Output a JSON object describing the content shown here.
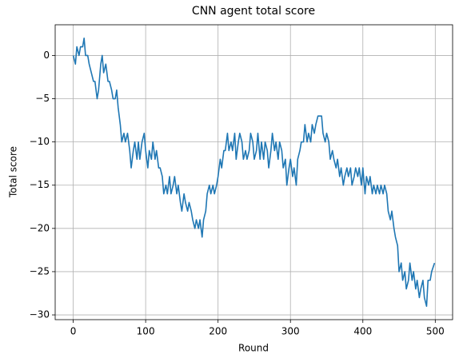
{
  "chart_data": {
    "type": "line",
    "title": "CNN agent total score",
    "xlabel": "Round",
    "ylabel": "Total score",
    "x": [
      0,
      3,
      5,
      8,
      10,
      13,
      15,
      17,
      20,
      22,
      25,
      28,
      30,
      33,
      35,
      38,
      40,
      42,
      45,
      48,
      50,
      53,
      55,
      58,
      60,
      62,
      65,
      67,
      70,
      72,
      75,
      78,
      80,
      83,
      85,
      88,
      90,
      92,
      95,
      98,
      100,
      103,
      105,
      108,
      110,
      113,
      115,
      118,
      120,
      123,
      125,
      128,
      130,
      133,
      135,
      138,
      140,
      143,
      145,
      148,
      150,
      153,
      155,
      158,
      160,
      163,
      165,
      168,
      170,
      173,
      175,
      178,
      180,
      183,
      185,
      188,
      190,
      193,
      195,
      198,
      200,
      203,
      205,
      208,
      210,
      213,
      215,
      218,
      220,
      223,
      225,
      228,
      230,
      233,
      235,
      238,
      240,
      243,
      245,
      248,
      250,
      253,
      255,
      258,
      260,
      263,
      265,
      268,
      270,
      273,
      275,
      278,
      280,
      283,
      285,
      288,
      290,
      293,
      295,
      298,
      300,
      303,
      305,
      308,
      310,
      313,
      315,
      318,
      320,
      323,
      325,
      328,
      330,
      333,
      335,
      338,
      340,
      343,
      345,
      348,
      350,
      353,
      355,
      358,
      360,
      363,
      365,
      368,
      370,
      373,
      375,
      378,
      380,
      383,
      385,
      388,
      390,
      393,
      395,
      398,
      400,
      403,
      405,
      408,
      410,
      413,
      415,
      418,
      420,
      423,
      425,
      428,
      430,
      433,
      435,
      438,
      440,
      443,
      445,
      448,
      450,
      453,
      455,
      458,
      460,
      463,
      465,
      468,
      470,
      473,
      475,
      478,
      480,
      483,
      485,
      488,
      490,
      493,
      495,
      499
    ],
    "series": [
      {
        "name": "Total score",
        "color": "#1f77b4",
        "values": [
          0,
          -1,
          1,
          0,
          1,
          1,
          2,
          0,
          0,
          -1,
          -2,
          -3,
          -3,
          -5,
          -4,
          -1,
          0,
          -2,
          -1,
          -3,
          -3,
          -4,
          -5,
          -5,
          -4,
          -6,
          -8,
          -10,
          -9,
          -10,
          -9,
          -11,
          -13,
          -11,
          -10,
          -12,
          -10,
          -12,
          -10,
          -9,
          -11,
          -13,
          -11,
          -12,
          -10,
          -12,
          -11,
          -13,
          -13,
          -14,
          -16,
          -15,
          -16,
          -14,
          -16,
          -15,
          -14,
          -16,
          -15,
          -17,
          -18,
          -16,
          -17,
          -18,
          -17,
          -18,
          -19,
          -20,
          -19,
          -20,
          -19,
          -21,
          -19,
          -18,
          -16,
          -15,
          -16,
          -15,
          -16,
          -15,
          -14,
          -12,
          -13,
          -11,
          -11,
          -9,
          -11,
          -10,
          -11,
          -9,
          -12,
          -10,
          -9,
          -10,
          -12,
          -11,
          -12,
          -11,
          -9,
          -10,
          -12,
          -11,
          -9,
          -12,
          -10,
          -12,
          -10,
          -11,
          -13,
          -11,
          -9,
          -11,
          -10,
          -12,
          -10,
          -11,
          -13,
          -12,
          -15,
          -13,
          -12,
          -14,
          -13,
          -15,
          -12,
          -11,
          -10,
          -10,
          -8,
          -10,
          -9,
          -10,
          -8,
          -9,
          -8,
          -7,
          -7,
          -7,
          -9,
          -10,
          -9,
          -10,
          -12,
          -11,
          -12,
          -13,
          -12,
          -14,
          -13,
          -15,
          -14,
          -13,
          -14,
          -13,
          -15,
          -14,
          -13,
          -14,
          -13,
          -15,
          -13,
          -16,
          -14,
          -15,
          -14,
          -16,
          -15,
          -16,
          -15,
          -16,
          -15,
          -16,
          -15,
          -16,
          -18,
          -19,
          -18,
          -20,
          -21,
          -22,
          -25,
          -24,
          -26,
          -25,
          -27,
          -26,
          -24,
          -26,
          -25,
          -27,
          -26,
          -28,
          -27,
          -26,
          -28,
          -29,
          -26,
          -26,
          -25,
          -24
        ]
      }
    ],
    "xlim": [
      -24.95,
      523.95
    ],
    "ylim": [
      -30.55,
      3.55
    ],
    "xticks": [
      0,
      100,
      200,
      300,
      400,
      500
    ],
    "yticks": [
      {
        "value": -30,
        "label": "−30"
      },
      {
        "value": -25,
        "label": "−25"
      },
      {
        "value": -20,
        "label": "−20"
      },
      {
        "value": -15,
        "label": "−15"
      },
      {
        "value": -10,
        "label": "−10"
      },
      {
        "value": -5,
        "label": "−5"
      },
      0
    ],
    "grid": true
  }
}
